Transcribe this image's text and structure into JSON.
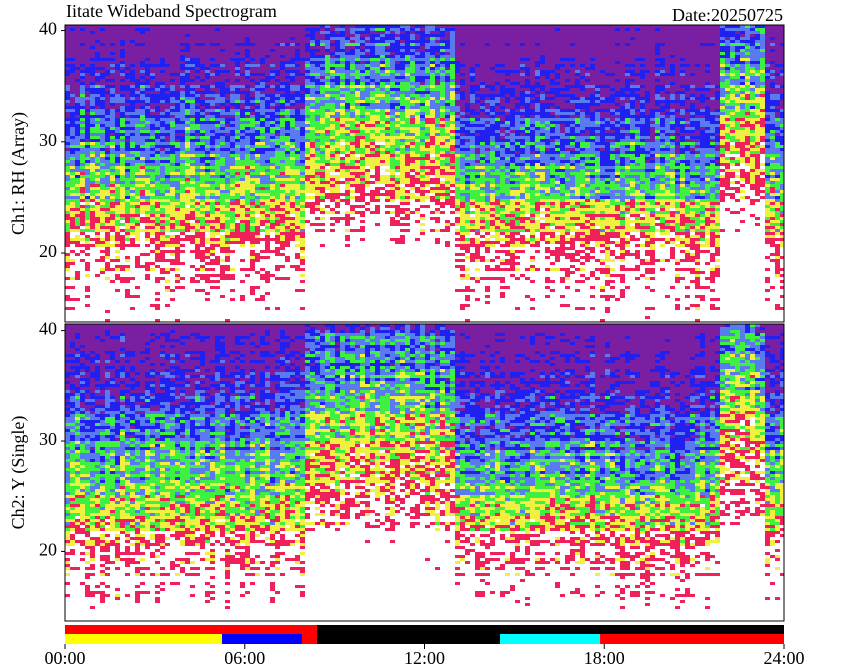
{
  "chart_data": {
    "type": "spectrogram",
    "title": "Iitate Wideband Spectrogram",
    "subtitle": "Date:20250725",
    "xlim": [
      0,
      24
    ],
    "xticks": [
      {
        "value": 0,
        "label": "00:00"
      },
      {
        "value": 6,
        "label": "06:00"
      },
      {
        "value": 12,
        "label": "12:00"
      },
      {
        "value": 18,
        "label": "18:00"
      },
      {
        "value": 24,
        "label": "24:00"
      }
    ],
    "panels": [
      {
        "ylabel": "Ch1: RH (Array)",
        "ylim": [
          13.8,
          40.5
        ],
        "yticks": [
          20,
          30,
          40
        ]
      },
      {
        "ylabel": "Ch2: Y (Single)",
        "ylim": [
          13.7,
          40.6
        ],
        "yticks": [
          20,
          30,
          40
        ]
      }
    ],
    "status_bars": [
      [
        {
          "start": 0,
          "end": 8.41,
          "color": "#ff0000"
        },
        {
          "start": 8.41,
          "end": 24,
          "color": "#000000"
        }
      ],
      [
        {
          "start": 0,
          "end": 5.24,
          "color": "#ffff00"
        },
        {
          "start": 5.24,
          "end": 7.91,
          "color": "#0000ff"
        },
        {
          "start": 7.91,
          "end": 8.41,
          "color": "#ff0000"
        },
        {
          "start": 8.41,
          "end": 14.52,
          "color": "#000000"
        },
        {
          "start": 14.52,
          "end": 17.86,
          "color": "#00ffff"
        },
        {
          "start": 17.86,
          "end": 24,
          "color": "#ff0000"
        }
      ]
    ]
  }
}
